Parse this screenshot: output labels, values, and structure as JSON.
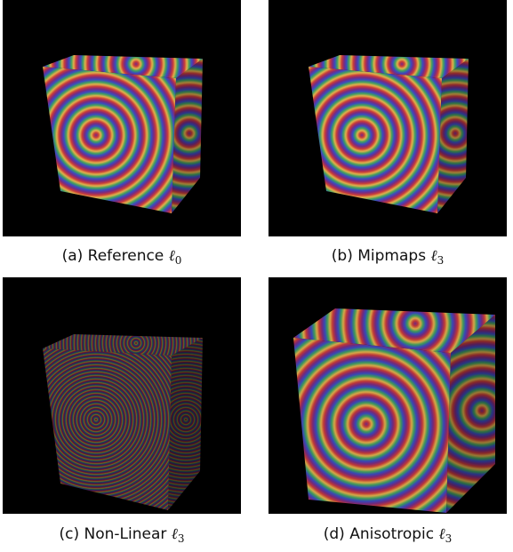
{
  "figure": {
    "panels": [
      {
        "label": "(a) Reference",
        "symbol": "ℓ",
        "subscript": "0"
      },
      {
        "label": "(b) Mipmaps",
        "symbol": "ℓ",
        "subscript": "3"
      },
      {
        "label": "(c) Non-Linear",
        "symbol": "ℓ",
        "subscript": "3"
      },
      {
        "label": "(d) Anisotropic",
        "symbol": "ℓ",
        "subscript": "3"
      }
    ]
  }
}
